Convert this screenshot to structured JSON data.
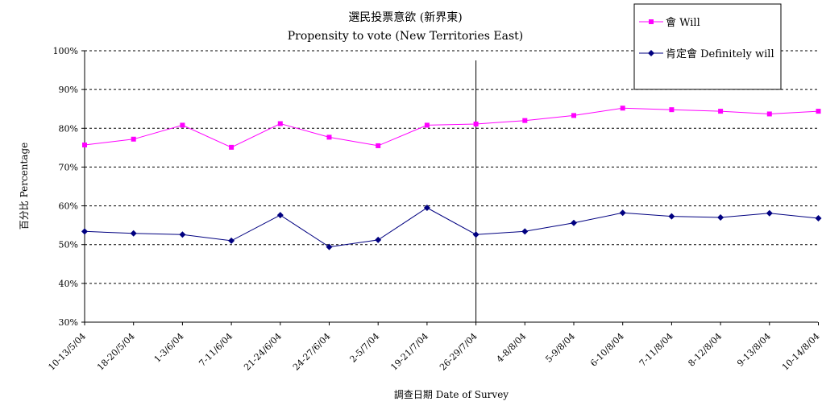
{
  "chart_data": {
    "type": "line",
    "title": "選民投票意欲 (新界東)",
    "subtitle": "Propensity to vote (New Territories East)",
    "xlabel": "調查日期 Date of Survey",
    "ylabel": "百分比 Percentage",
    "ylim": [
      30,
      100
    ],
    "yticks": [
      "30%",
      "40%",
      "50%",
      "60%",
      "70%",
      "80%",
      "90%",
      "100%"
    ],
    "grid": "horizontal dashed",
    "legend_position": "top-right",
    "categories": [
      "10-13/5/04",
      "18-20/5/04",
      "1-3/6/04",
      "7-11/6/04",
      "21-24/6/04",
      "24-27/6/04",
      "2-5/7/04",
      "19-21/7/04",
      "26-29/7/04",
      "4-8/8/04",
      "5-9/8/04",
      "6-10/8/04",
      "7-11/8/04",
      "8-12/8/04",
      "9-13/8/04",
      "10-14/8/04"
    ],
    "vertical_marker_index": 8,
    "series": [
      {
        "name": "會 Will",
        "color": "#ff00ff",
        "marker": "square",
        "values": [
          75.7,
          77.2,
          80.8,
          75.1,
          81.2,
          77.7,
          75.5,
          80.8,
          81.1,
          82.0,
          83.3,
          85.2,
          84.8,
          84.4,
          83.7,
          84.4
        ]
      },
      {
        "name": "肯定會 Definitely will",
        "color": "#000080",
        "marker": "diamond",
        "values": [
          53.4,
          52.9,
          52.6,
          51.0,
          57.6,
          49.4,
          51.2,
          59.5,
          52.6,
          53.4,
          55.6,
          58.2,
          57.3,
          57.0,
          58.1,
          56.8
        ]
      }
    ]
  }
}
